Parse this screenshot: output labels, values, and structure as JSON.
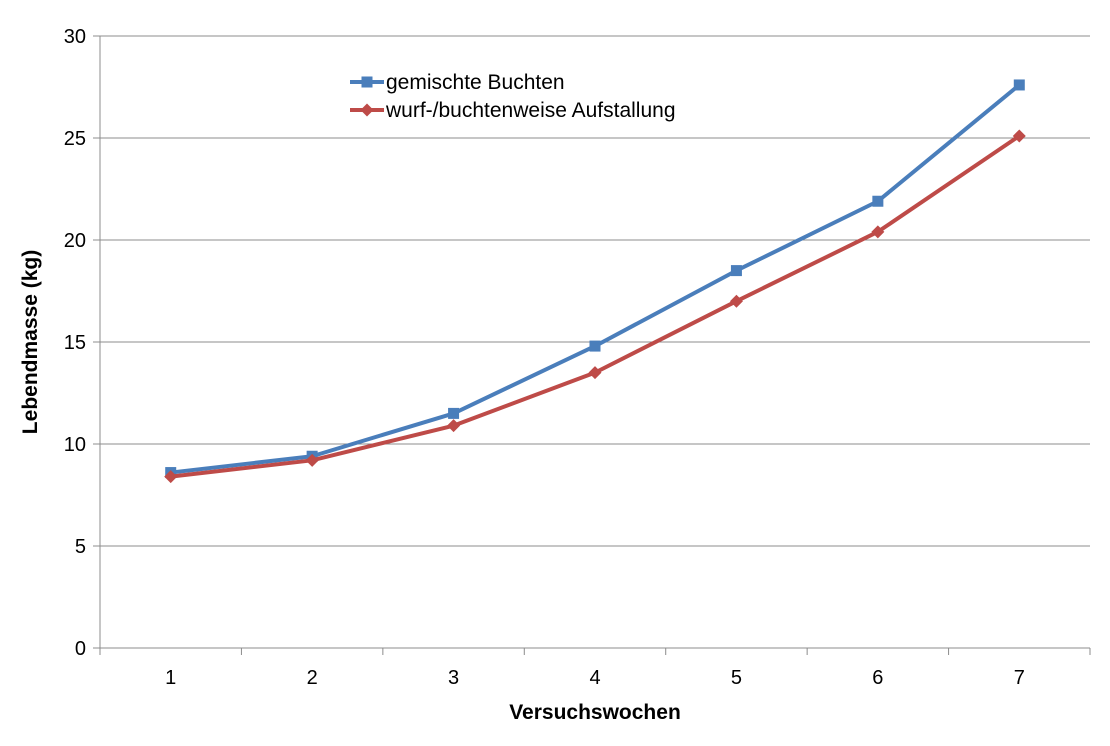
{
  "chart_data": {
    "type": "line",
    "title": "",
    "xlabel": "Versuchswochen",
    "ylabel": "Lebendmasse (kg)",
    "categories": [
      "1",
      "2",
      "3",
      "4",
      "5",
      "6",
      "7"
    ],
    "ylim": [
      0,
      30
    ],
    "yticks": [
      "0",
      "5",
      "10",
      "15",
      "20",
      "25",
      "30"
    ],
    "grid": true,
    "legend_position": "top-center",
    "series": [
      {
        "name": "gemischte Buchten",
        "color": "#4A7EBB",
        "marker": "square",
        "values": [
          8.6,
          9.4,
          11.5,
          14.8,
          18.5,
          21.9,
          27.6
        ]
      },
      {
        "name": "wurf-/buchtenweise Aufstallung",
        "color": "#BE4B48",
        "marker": "diamond",
        "values": [
          8.4,
          9.2,
          10.9,
          13.5,
          17.0,
          20.4,
          25.1
        ]
      }
    ]
  }
}
